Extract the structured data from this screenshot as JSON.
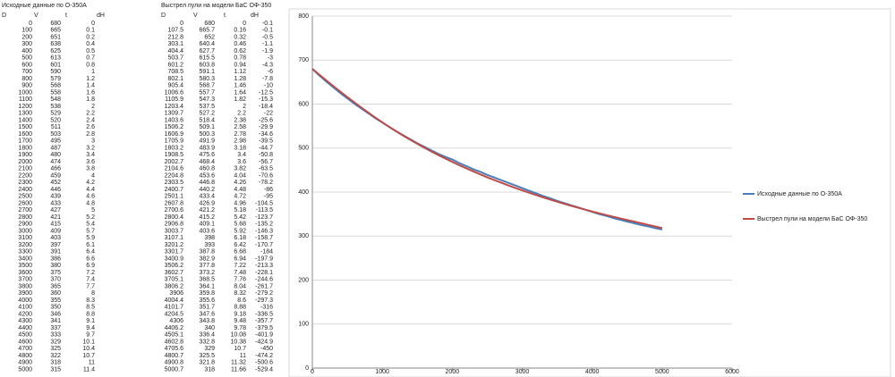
{
  "tables": [
    {
      "title": "Исходные данные по О-350А",
      "columns": [
        "D",
        "V",
        "t",
        "dH"
      ],
      "rows": [
        [
          0,
          680,
          0
        ],
        [
          100,
          665,
          0.1
        ],
        [
          200,
          651,
          0.2
        ],
        [
          300,
          638,
          0.4
        ],
        [
          400,
          625,
          0.5
        ],
        [
          500,
          613,
          0.7
        ],
        [
          600,
          601,
          0.8
        ],
        [
          700,
          590,
          1
        ],
        [
          800,
          579,
          1.2
        ],
        [
          900,
          568,
          1.4
        ],
        [
          1000,
          558,
          1.6
        ],
        [
          1100,
          548,
          1.8
        ],
        [
          1200,
          538,
          2
        ],
        [
          1300,
          529,
          2.2
        ],
        [
          1400,
          520,
          2.4
        ],
        [
          1500,
          511,
          2.6
        ],
        [
          1600,
          503,
          2.8
        ],
        [
          1700,
          495,
          3
        ],
        [
          1800,
          487,
          3.2
        ],
        [
          1900,
          480,
          3.4
        ],
        [
          2000,
          474,
          3.6
        ],
        [
          2100,
          466,
          3.8
        ],
        [
          2200,
          459,
          4
        ],
        [
          2300,
          452,
          4.2
        ],
        [
          2400,
          446,
          4.4
        ],
        [
          2500,
          439,
          4.6
        ],
        [
          2600,
          433,
          4.8
        ],
        [
          2700,
          427,
          5
        ],
        [
          2800,
          421,
          5.2
        ],
        [
          2900,
          415,
          5.4
        ],
        [
          3000,
          409,
          5.7
        ],
        [
          3100,
          403,
          5.9
        ],
        [
          3200,
          397,
          6.1
        ],
        [
          3300,
          391,
          6.4
        ],
        [
          3400,
          386,
          6.6
        ],
        [
          3500,
          380,
          6.9
        ],
        [
          3600,
          375,
          7.2
        ],
        [
          3700,
          370,
          7.4
        ],
        [
          3800,
          365,
          7.7
        ],
        [
          3900,
          360,
          8
        ],
        [
          4000,
          355,
          8.3
        ],
        [
          4100,
          350,
          8.5
        ],
        [
          4200,
          346,
          8.8
        ],
        [
          4300,
          341,
          9.1
        ],
        [
          4400,
          337,
          9.4
        ],
        [
          4500,
          333,
          9.7
        ],
        [
          4600,
          329,
          10.1
        ],
        [
          4700,
          325,
          10.4
        ],
        [
          4800,
          322,
          10.7
        ],
        [
          4900,
          318,
          11
        ],
        [
          5000,
          315,
          11.4
        ]
      ]
    },
    {
      "title": "Выстрел пули на модели БаС ОФ-350",
      "columns": [
        "D",
        "V",
        "t",
        "dH"
      ],
      "rows": [
        [
          0,
          680,
          0,
          -0.1
        ],
        [
          107.5,
          665.7,
          0.16,
          -0.1
        ],
        [
          212.8,
          652,
          0.32,
          -0.5
        ],
        [
          303.1,
          640.4,
          0.46,
          -1.1
        ],
        [
          404.4,
          627.7,
          0.62,
          -1.9
        ],
        [
          503.7,
          615.5,
          0.78,
          -3
        ],
        [
          601.2,
          603.8,
          0.94,
          -4.3
        ],
        [
          708.5,
          591.1,
          1.12,
          -6
        ],
        [
          802.1,
          580.3,
          1.28,
          -7.8
        ],
        [
          905.4,
          568.7,
          1.46,
          -10
        ],
        [
          1006.6,
          557.7,
          1.64,
          -12.5
        ],
        [
          1105.9,
          547.3,
          1.82,
          -15.3
        ],
        [
          1203.4,
          537.5,
          2,
          -18.4
        ],
        [
          1309.7,
          527.2,
          2.2,
          -22
        ],
        [
          1403.6,
          518.4,
          2.38,
          -25.6
        ],
        [
          1506.2,
          509.1,
          2.58,
          -29.9
        ],
        [
          1606.9,
          500.3,
          2.78,
          -34.6
        ],
        [
          1705.9,
          491.9,
          2.98,
          -39.5
        ],
        [
          1803.2,
          483.9,
          3.18,
          -44.7
        ],
        [
          1908.5,
          475.6,
          3.4,
          -50.8
        ],
        [
          2002.7,
          468.4,
          3.6,
          -56.7
        ],
        [
          2104.6,
          460.8,
          3.82,
          -63.5
        ],
        [
          2204.8,
          453.6,
          4.04,
          -70.6
        ],
        [
          2303.5,
          446.8,
          4.26,
          -78.2
        ],
        [
          2400.7,
          440.2,
          4.48,
          -86
        ],
        [
          2501.1,
          433.4,
          4.72,
          -95
        ],
        [
          2607.8,
          426.9,
          4.96,
          -104.5
        ],
        [
          2700.6,
          421.2,
          5.18,
          -113.5
        ],
        [
          2800.4,
          415.2,
          5.42,
          -123.7
        ],
        [
          2906.8,
          409.1,
          5.68,
          -135.2
        ],
        [
          3003.7,
          403.6,
          5.92,
          -146.3
        ],
        [
          3107.1,
          398,
          6.18,
          -158.7
        ],
        [
          3201.2,
          393,
          6.42,
          -170.7
        ],
        [
          3301.7,
          387.8,
          6.68,
          -184
        ],
        [
          3400.9,
          382.9,
          6.94,
          -197.9
        ],
        [
          3506.2,
          377.8,
          7.22,
          -213.3
        ],
        [
          3602.7,
          373.2,
          7.48,
          -228.1
        ],
        [
          3705.1,
          368.5,
          7.76,
          -244.6
        ],
        [
          3806.2,
          364.1,
          8.04,
          -261.7
        ],
        [
          3906,
          359.8,
          8.32,
          -279.2
        ],
        [
          4004.4,
          355.6,
          8.6,
          -297.3
        ],
        [
          4101.7,
          351.7,
          8.88,
          -316
        ],
        [
          4204.5,
          347.6,
          9.18,
          -336.5
        ],
        [
          4306,
          343.8,
          9.48,
          -357.7
        ],
        [
          4406.2,
          340,
          9.78,
          -379.5
        ],
        [
          4505.1,
          336.4,
          10.08,
          -401.9
        ],
        [
          4602.8,
          332.8,
          10.38,
          -424.9
        ],
        [
          4705.6,
          329,
          10.7,
          -450
        ],
        [
          4800.7,
          325.5,
          11,
          -474.2
        ],
        [
          4900.8,
          321.8,
          11.32,
          -500.6
        ],
        [
          5000.7,
          318,
          11.66,
          -529.4
        ]
      ]
    }
  ],
  "chart_data": {
    "type": "line",
    "series": [
      {
        "name": "Исходные данные по О-350А",
        "color": "#4a7ebb"
      },
      {
        "name": "Выстрел пули на модели БаС ОФ-350",
        "color": "#be4b48"
      }
    ],
    "xlim": [
      0,
      6000
    ],
    "xticks": [
      0,
      1000,
      2000,
      3000,
      4000,
      5000,
      6000
    ],
    "ylim": [
      0,
      800
    ],
    "yticks": [
      0,
      100,
      200,
      300,
      400,
      500,
      600,
      700,
      800
    ],
    "grid": true,
    "legend": "right"
  }
}
